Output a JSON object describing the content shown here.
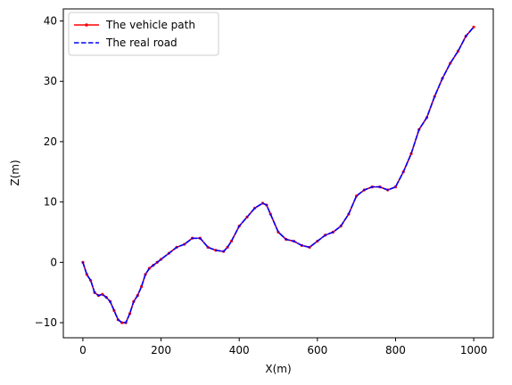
{
  "chart_data": {
    "type": "line",
    "xlabel": "X(m)",
    "ylabel": "Z(m)",
    "xlim": [
      -50,
      1050
    ],
    "ylim": [
      -12.5,
      42
    ],
    "xticks": [
      0,
      200,
      400,
      600,
      800,
      1000
    ],
    "yticks": [
      -10,
      0,
      10,
      20,
      30,
      40
    ],
    "grid": false,
    "legend_position": "top-left",
    "series": [
      {
        "name": "The vehicle path",
        "color": "#ff0000",
        "line_style": "solid",
        "marker": "dot",
        "x": [
          0,
          10,
          20,
          30,
          40,
          50,
          60,
          70,
          80,
          90,
          100,
          110,
          120,
          130,
          140,
          150,
          160,
          170,
          180,
          190,
          200,
          220,
          240,
          260,
          280,
          300,
          320,
          340,
          360,
          370,
          380,
          400,
          420,
          440,
          460,
          470,
          480,
          500,
          520,
          540,
          560,
          580,
          600,
          620,
          640,
          660,
          680,
          700,
          720,
          740,
          760,
          780,
          800,
          820,
          840,
          860,
          880,
          900,
          920,
          940,
          960,
          980,
          1000
        ],
        "y": [
          0,
          -2,
          -3,
          -5,
          -5.5,
          -5.3,
          -5.8,
          -6.5,
          -8,
          -9.5,
          -10,
          -10,
          -8.5,
          -6.5,
          -5.5,
          -4,
          -2,
          -1,
          -0.5,
          0,
          0.5,
          1.5,
          2.5,
          3,
          4,
          4,
          2.5,
          2,
          1.8,
          2.5,
          3.5,
          6,
          7.5,
          9,
          9.8,
          9.5,
          8,
          5,
          3.8,
          3.5,
          2.8,
          2.5,
          3.5,
          4.5,
          5,
          6,
          8,
          11,
          12,
          12.5,
          12.5,
          12,
          12.5,
          15,
          18,
          22,
          24,
          27.5,
          30.5,
          33,
          35,
          37.5,
          39
        ]
      },
      {
        "name": "The real road",
        "color": "#0000ff",
        "line_style": "dashed",
        "x": [
          0,
          10,
          20,
          30,
          40,
          50,
          60,
          70,
          80,
          90,
          100,
          110,
          120,
          130,
          140,
          150,
          160,
          170,
          180,
          190,
          200,
          220,
          240,
          260,
          280,
          300,
          320,
          340,
          360,
          370,
          380,
          400,
          420,
          440,
          460,
          470,
          480,
          500,
          520,
          540,
          560,
          580,
          600,
          620,
          640,
          660,
          680,
          700,
          720,
          740,
          760,
          780,
          800,
          820,
          840,
          860,
          880,
          900,
          920,
          940,
          960,
          980,
          1000
        ],
        "y": [
          0,
          -2,
          -3,
          -5,
          -5.5,
          -5.3,
          -5.8,
          -6.5,
          -8,
          -9.5,
          -10,
          -10,
          -8.5,
          -6.5,
          -5.5,
          -4,
          -2,
          -1,
          -0.5,
          0,
          0.5,
          1.5,
          2.5,
          3,
          4,
          4,
          2.5,
          2,
          1.8,
          2.5,
          3.5,
          6,
          7.5,
          9,
          9.8,
          9.5,
          8,
          5,
          3.8,
          3.5,
          2.8,
          2.5,
          3.5,
          4.5,
          5,
          6,
          8,
          11,
          12,
          12.5,
          12.5,
          12,
          12.5,
          15,
          18,
          22,
          24,
          27.5,
          30.5,
          33,
          35,
          37.5,
          39
        ]
      }
    ]
  }
}
